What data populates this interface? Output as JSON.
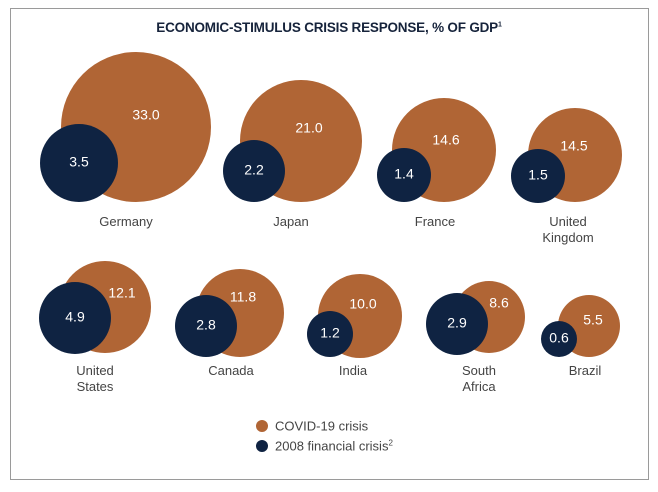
{
  "chart_data": {
    "type": "bubble",
    "title": "ECONOMIC-STIMULUS CRISIS RESPONSE, % OF GDP",
    "title_footnote": "1",
    "categories": [
      "Germany",
      "Japan",
      "France",
      "United Kingdom",
      "United States",
      "Canada",
      "India",
      "South Africa",
      "Brazil"
    ],
    "category_lines": [
      [
        "Germany"
      ],
      [
        "Japan"
      ],
      [
        "France"
      ],
      [
        "United",
        "Kingdom"
      ],
      [
        "United",
        "States"
      ],
      [
        "Canada"
      ],
      [
        "India"
      ],
      [
        "South",
        "Africa"
      ],
      [
        "Brazil"
      ]
    ],
    "series": [
      {
        "name": "COVID-19 crisis",
        "color": "#B06535",
        "values": [
          33.0,
          21.0,
          14.6,
          14.5,
          12.1,
          11.8,
          10.0,
          8.6,
          5.5
        ]
      },
      {
        "name": "2008 financial crisis",
        "footnote": "2",
        "color": "#0F2342",
        "values": [
          3.5,
          2.2,
          1.4,
          1.5,
          4.9,
          2.8,
          1.2,
          2.9,
          0.6
        ]
      }
    ],
    "legend_position": "bottom-center"
  }
}
